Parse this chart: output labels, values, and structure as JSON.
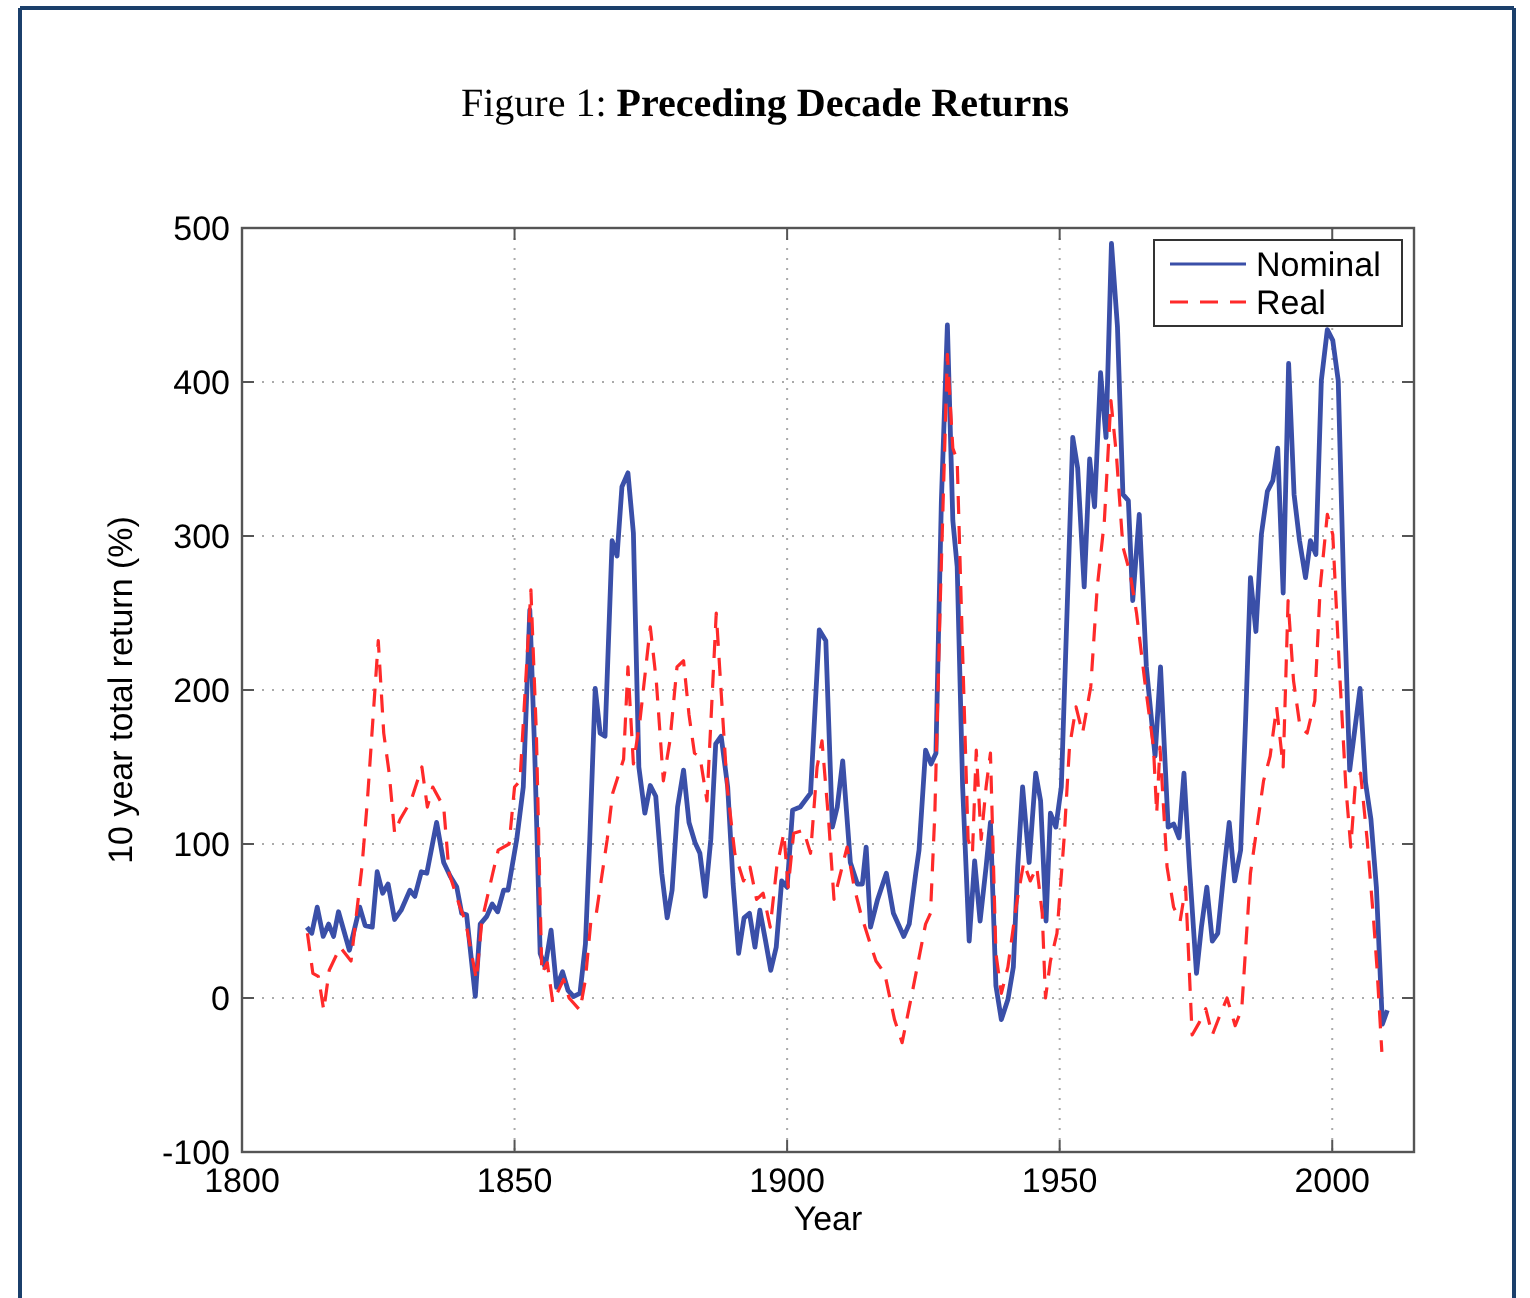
{
  "chart_data": {
    "type": "line",
    "title": "Figure 1: Preceding Decade Returns",
    "xlabel": "Year",
    "ylabel": "10 year total return (%)",
    "xlim": [
      1800,
      2015
    ],
    "xticks": [
      1800,
      1850,
      1900,
      1950,
      2000
    ],
    "ylim": [
      -100,
      500
    ],
    "yticks": [
      -100,
      0,
      100,
      200,
      300,
      400,
      500
    ],
    "grid": true,
    "legend": "top right",
    "series": [
      {
        "name": "Nominal",
        "color": "#3a4fa8",
        "line_style": "solid",
        "x": [
          1811.9,
          1812.8,
          1813.8,
          1814.9,
          1815.9,
          1816.8,
          1817.7,
          1819.7,
          1821.6,
          1822.6,
          1823.9,
          1824.8,
          1825.8,
          1826.8,
          1828,
          1829.2,
          1830.8,
          1831.7,
          1832.9,
          1833.9,
          1835.7,
          1837,
          1838.2,
          1839.4,
          1840.3,
          1841.2,
          1842.8,
          1843.7,
          1844.9,
          1845.9,
          1846.9,
          1848,
          1848.8,
          1850.4,
          1851.6,
          1852.8,
          1853.7,
          1854.7,
          1855.6,
          1856.7,
          1857.7,
          1858.8,
          1859.8,
          1860.8,
          1862,
          1863,
          1863.8,
          1864.8,
          1865.7,
          1866.6,
          1867.9,
          1868.8,
          1869.7,
          1870.8,
          1871.8,
          1872.8,
          1873.9,
          1874.9,
          1875.9,
          1877,
          1878,
          1878.9,
          1879.9,
          1881,
          1882,
          1883.1,
          1884,
          1885,
          1886,
          1886.9,
          1887.9,
          1889.1,
          1890.1,
          1891.1,
          1892.1,
          1893.1,
          1894.1,
          1895,
          1896,
          1897,
          1898,
          1899,
          1900,
          1901,
          1902.4,
          1904.3,
          1905.9,
          1907.1,
          1908.3,
          1909.2,
          1910.2,
          1911.6,
          1912.9,
          1913.8,
          1914.5,
          1915.3,
          1916.6,
          1918.2,
          1919.5,
          1921.4,
          1922.4,
          1923.6,
          1924.2,
          1925.4,
          1926.4,
          1927.3,
          1928.3,
          1929.4,
          1930.4,
          1931.2,
          1932.2,
          1933.4,
          1934.4,
          1935.4,
          1936.5,
          1937.3,
          1938.3,
          1939.3,
          1940.5,
          1941.5,
          1942.3,
          1943.2,
          1944.4,
          1945.6,
          1946.5,
          1947.5,
          1948.3,
          1949.3,
          1950.3,
          1952.4,
          1953.3,
          1954.5,
          1955.5,
          1956.4,
          1957.5,
          1958.5,
          1959.5,
          1960.6,
          1961.6,
          1962.6,
          1963.4,
          1964.6,
          1965.9,
          1967.5,
          1968.5,
          1969.9,
          1970.9,
          1971.9,
          1972.8,
          1973.8,
          1975.1,
          1976,
          1977,
          1978,
          1979,
          1980.1,
          1981.1,
          1982.1,
          1983.2,
          1984.1,
          1985,
          1986,
          1987,
          1988.1,
          1989.1,
          1990,
          1991,
          1992,
          1993,
          1994,
          1995.1,
          1996,
          1997,
          1998,
          1999.1,
          2000.1,
          2001.1,
          2002.1,
          2003.2,
          2004.2,
          2005.1,
          2006.1,
          2007.1,
          2008.1,
          2009.2,
          2010.1
        ],
        "values": [
          46,
          42,
          59,
          40,
          48,
          40,
          56,
          31,
          59,
          47,
          46,
          82,
          68,
          74,
          51,
          57,
          70,
          66,
          82,
          81,
          114,
          88,
          79,
          72,
          55,
          54,
          1,
          48,
          53,
          61,
          56,
          70,
          70,
          103,
          137,
          252,
          159,
          29,
          20,
          44,
          7,
          17,
          5,
          1,
          3,
          35,
          103,
          201,
          172,
          170,
          297,
          287,
          332,
          341,
          302,
          150,
          120,
          138,
          131,
          81,
          52,
          70,
          124,
          148,
          114,
          101,
          94,
          66,
          103,
          165,
          170,
          137,
          74,
          29,
          52,
          55,
          33,
          57,
          38,
          18,
          33,
          76,
          72,
          122,
          124,
          133,
          239,
          232,
          111,
          124,
          154,
          88,
          74,
          74,
          98,
          46,
          64,
          81,
          55,
          40,
          48,
          81,
          96,
          161,
          152,
          159,
          323,
          437,
          310,
          280,
          137,
          37,
          89,
          50,
          85,
          114,
          8,
          -14,
          -1,
          20,
          85,
          137,
          88,
          146,
          128,
          50,
          120,
          111,
          137,
          364,
          344,
          267,
          350,
          319,
          406,
          364,
          490,
          436,
          327,
          323,
          258,
          314,
          215,
          157,
          215,
          111,
          113,
          104,
          146,
          85,
          16,
          46,
          72,
          37,
          42,
          81,
          114,
          76,
          96,
          180,
          273,
          238,
          301,
          329,
          336,
          357,
          263,
          412,
          327,
          297,
          273,
          297,
          288,
          401,
          434,
          427,
          401,
          267,
          148,
          176,
          201,
          140,
          116,
          72,
          -17,
          -8
        ]
      },
      {
        "name": "Real",
        "color": "#ff2a2a",
        "line_style": "dashed",
        "x": [
          1812,
          1813,
          1814,
          1815,
          1816,
          1818,
          1820,
          1822,
          1823,
          1825,
          1826,
          1827,
          1828,
          1829,
          1831,
          1833,
          1834,
          1835,
          1837,
          1838,
          1840,
          1841,
          1843,
          1844,
          1846,
          1847,
          1849,
          1850,
          1851,
          1853,
          1854,
          1855,
          1856,
          1857,
          1859,
          1860,
          1862,
          1863,
          1864,
          1865,
          1867,
          1868,
          1870,
          1870.8,
          1871.8,
          1873,
          1874.9,
          1876,
          1877.3,
          1878.5,
          1879.8,
          1881,
          1882,
          1883,
          1884,
          1885.3,
          1887,
          1888,
          1889,
          1890.4,
          1892,
          1893.2,
          1894.4,
          1895.6,
          1896.9,
          1898.1,
          1899.4,
          1900.2,
          1901.2,
          1903,
          1904.3,
          1905.5,
          1906.4,
          1907.6,
          1908.6,
          1909.8,
          1911,
          1912.3,
          1913.5,
          1915,
          1916.3,
          1917.9,
          1919.7,
          1921.1,
          1923.2,
          1925.4,
          1926.3,
          1927.1,
          1928.1,
          1929.4,
          1930.4,
          1931.2,
          1932.2,
          1933.2,
          1934,
          1934.7,
          1935.6,
          1936.5,
          1937.3,
          1938.3,
          1939.3,
          1940.5,
          1942,
          1943.4,
          1944.6,
          1945.8,
          1946.8,
          1947.4,
          1948.3,
          1949.5,
          1950.8,
          1951.8,
          1953,
          1954.2,
          1955.7,
          1956.9,
          1958.2,
          1959.4,
          1960.4,
          1961.6,
          1962.9,
          1964.1,
          1965.6,
          1967.2,
          1967.8,
          1968.4,
          1969.7,
          1970.9,
          1972.1,
          1973.1,
          1974.3,
          1975.6,
          1976.8,
          1978,
          1979.2,
          1980.7,
          1982.2,
          1983.4,
          1985,
          1986.2,
          1987.4,
          1988.6,
          1989.8,
          1991,
          1991.9,
          1992.9,
          1994.1,
          1995.4,
          1996.8,
          1997.8,
          1999.1,
          2000.1,
          2001.3,
          2002.5,
          2003.4,
          2004.2,
          2005.2,
          2006.4,
          2007.6,
          2008.2,
          2009.1
        ],
        "values": [
          42,
          16,
          14,
          -8,
          18,
          33,
          24,
          85,
          128,
          232,
          172,
          146,
          107,
          116,
          128,
          150,
          124,
          137,
          124,
          81,
          59,
          50,
          12,
          50,
          81,
          96,
          100,
          137,
          141,
          265,
          172,
          16,
          23,
          -3,
          12,
          0,
          -8,
          12,
          50,
          55,
          103,
          133,
          155,
          215,
          152,
          180,
          241,
          206,
          141,
          167,
          215,
          219,
          184,
          159,
          157,
          128,
          250,
          193,
          137,
          94,
          76,
          85,
          64,
          68,
          46,
          85,
          107,
          72,
          107,
          109,
          94,
          150,
          167,
          116,
          64,
          81,
          98,
          72,
          55,
          38,
          24,
          16,
          -14,
          -29,
          8,
          48,
          55,
          120,
          258,
          418,
          357,
          349,
          224,
          103,
          94,
          161,
          103,
          137,
          159,
          29,
          3,
          20,
          59,
          88,
          76,
          85,
          55,
          0,
          24,
          42,
          103,
          163,
          189,
          172,
          202,
          267,
          310,
          388,
          353,
          293,
          276,
          250,
          206,
          163,
          120,
          163,
          85,
          59,
          50,
          72,
          -24,
          -16,
          -7,
          -24,
          -13,
          0,
          -18,
          -7,
          81,
          111,
          141,
          157,
          189,
          150,
          258,
          206,
          176,
          172,
          193,
          267,
          314,
          301,
          215,
          137,
          98,
          137,
          146,
          103,
          50,
          20,
          -35
        ]
      }
    ]
  }
}
